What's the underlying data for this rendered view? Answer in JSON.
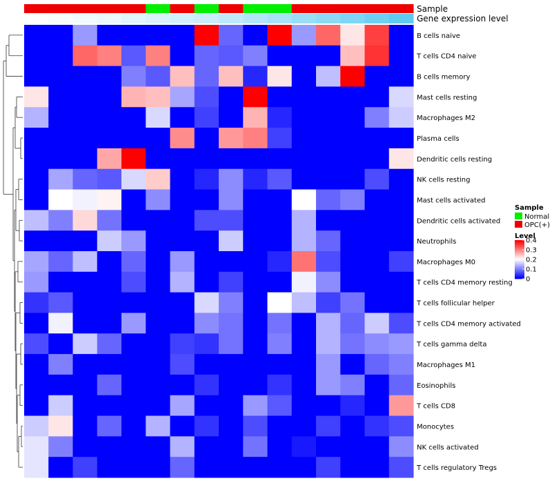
{
  "chart_data": {
    "type": "heatmap",
    "annotation_labels": [
      "Sample",
      "Gene expression level"
    ],
    "legend": {
      "sample_title": "Sample",
      "sample_entries": [
        {
          "label": "Normal",
          "color": "#00ee00"
        },
        {
          "label": "OPC(+)",
          "color": "#ee0000"
        }
      ],
      "level_title": "Level",
      "level_ticks": [
        "0.4",
        "0.3",
        "0.2",
        "0.1",
        "0"
      ],
      "level_tick_values": [
        0.4,
        0.3,
        0.2,
        0.1,
        0
      ],
      "level_range": [
        0,
        0.4
      ]
    },
    "color_scale": {
      "low": "#0000ff",
      "mid": "#ffffff",
      "high": "#ff0000",
      "midpoint": 0.2
    },
    "sample_groups": [
      "OPC(+)",
      "OPC(+)",
      "OPC(+)",
      "OPC(+)",
      "OPC(+)",
      "Normal",
      "OPC(+)",
      "Normal",
      "OPC(+)",
      "Normal",
      "Normal",
      "OPC(+)",
      "OPC(+)",
      "OPC(+)",
      "OPC(+)",
      "OPC(+)"
    ],
    "expression_level": [
      0.02,
      0.05,
      0.08,
      0.12,
      0.18,
      0.22,
      0.28,
      0.32,
      0.38,
      0.45,
      0.52,
      0.6,
      0.68,
      0.76,
      0.85,
      0.95
    ],
    "rows": [
      "B cells naive",
      "T cells CD4 naive",
      "B cells memory",
      "Mast cells resting",
      "Macrophages M2",
      "Plasma cells",
      "Dendritic cells resting",
      "NK cells resting",
      "Mast cells activated",
      "Dendritic cells activated",
      "Neutrophils",
      "Macrophages M0",
      "T cells CD4 memory resting",
      "T cells follicular helper",
      "T cells CD4 memory activated",
      "T cells gamma delta",
      "Macrophages M1",
      "Eosinophils",
      "T cells CD8",
      "Monocytes",
      "NK cells activated",
      "T cells regulatory  Tregs"
    ],
    "values": [
      [
        0,
        0,
        0.12,
        0,
        0,
        0,
        0,
        0.4,
        0.08,
        0,
        0.4,
        0.12,
        0.32,
        0.22,
        0.35,
        0
      ],
      [
        0,
        0,
        0.32,
        0.3,
        0.07,
        0.3,
        0,
        0.08,
        0.07,
        0.1,
        0,
        0,
        0,
        0.25,
        0.36,
        0
      ],
      [
        0,
        0,
        0,
        0,
        0.1,
        0.07,
        0.25,
        0.08,
        0.25,
        0.03,
        0.22,
        0,
        0.15,
        0.4,
        0,
        0
      ],
      [
        0.22,
        0,
        0,
        0,
        0.26,
        0.25,
        0.13,
        0.06,
        0,
        0.4,
        0,
        0,
        0,
        0,
        0,
        0.17
      ],
      [
        0.14,
        0,
        0,
        0,
        0,
        0.17,
        0,
        0.05,
        0,
        0.26,
        0.03,
        0,
        0,
        0,
        0.1,
        0.16
      ],
      [
        0,
        0,
        0,
        0,
        0,
        0,
        0.29,
        0,
        0.28,
        0.3,
        0.05,
        0,
        0,
        0,
        0,
        0
      ],
      [
        0,
        0,
        0,
        0.27,
        0.4,
        0,
        0,
        0,
        0,
        0,
        0,
        0,
        0,
        0,
        0,
        0.22
      ],
      [
        0,
        0.13,
        0.08,
        0.07,
        0.17,
        0.24,
        0,
        0.03,
        0.11,
        0.03,
        0.07,
        0,
        0,
        0,
        0.06,
        0
      ],
      [
        0,
        0.2,
        0.19,
        0.21,
        0,
        0.11,
        0,
        0,
        0.11,
        0,
        0,
        0.2,
        0.08,
        0.1,
        0,
        0
      ],
      [
        0.15,
        0.1,
        0.23,
        0.09,
        0,
        0,
        0,
        0.06,
        0.06,
        0,
        0,
        0.14,
        0,
        0,
        0,
        0
      ],
      [
        0,
        0,
        0,
        0.16,
        0.12,
        0,
        0,
        0,
        0.16,
        0,
        0,
        0.14,
        0.08,
        0,
        0,
        0
      ],
      [
        0.13,
        0.08,
        0.15,
        0,
        0.08,
        0,
        0.12,
        0,
        0,
        0,
        0.03,
        0.31,
        0.06,
        0,
        0,
        0.05
      ],
      [
        0.12,
        0,
        0,
        0,
        0.06,
        0,
        0.14,
        0,
        0.05,
        0,
        0,
        0.19,
        0.11,
        0,
        0,
        0
      ],
      [
        0.04,
        0.07,
        0,
        0,
        0,
        0,
        0,
        0.17,
        0.1,
        0,
        0.2,
        0.15,
        0.05,
        0.09,
        0,
        0
      ],
      [
        0,
        0.19,
        0,
        0,
        0.12,
        0,
        0,
        0.11,
        0.09,
        0,
        0.09,
        0,
        0.14,
        0.08,
        0.16,
        0.06
      ],
      [
        0.06,
        0,
        0.16,
        0.08,
        0,
        0,
        0.05,
        0.04,
        0.09,
        0,
        0.1,
        0,
        0.14,
        0.09,
        0.11,
        0.12
      ],
      [
        0,
        0.1,
        0,
        0,
        0,
        0,
        0.06,
        0,
        0,
        0,
        0,
        0,
        0.12,
        0,
        0.08,
        0.1
      ],
      [
        0,
        0,
        0,
        0.08,
        0,
        0,
        0,
        0.04,
        0,
        0,
        0.04,
        0,
        0.12,
        0.1,
        0,
        0.08
      ],
      [
        0,
        0.16,
        0,
        0,
        0,
        0,
        0.13,
        0,
        0,
        0.12,
        0.07,
        0,
        0,
        0.03,
        0,
        0.28
      ],
      [
        0.16,
        0.22,
        0,
        0.08,
        0,
        0.14,
        0,
        0.04,
        0,
        0.06,
        0,
        0,
        0.05,
        0,
        0.04,
        0.06
      ],
      [
        0.18,
        0.1,
        0,
        0,
        0,
        0,
        0.14,
        0,
        0,
        0.09,
        0,
        0.02,
        0,
        0,
        0,
        0.11
      ],
      [
        0.18,
        0,
        0.05,
        0,
        0,
        0,
        0.08,
        0,
        0,
        0,
        0,
        0,
        0.05,
        0,
        0,
        0.06
      ]
    ]
  }
}
